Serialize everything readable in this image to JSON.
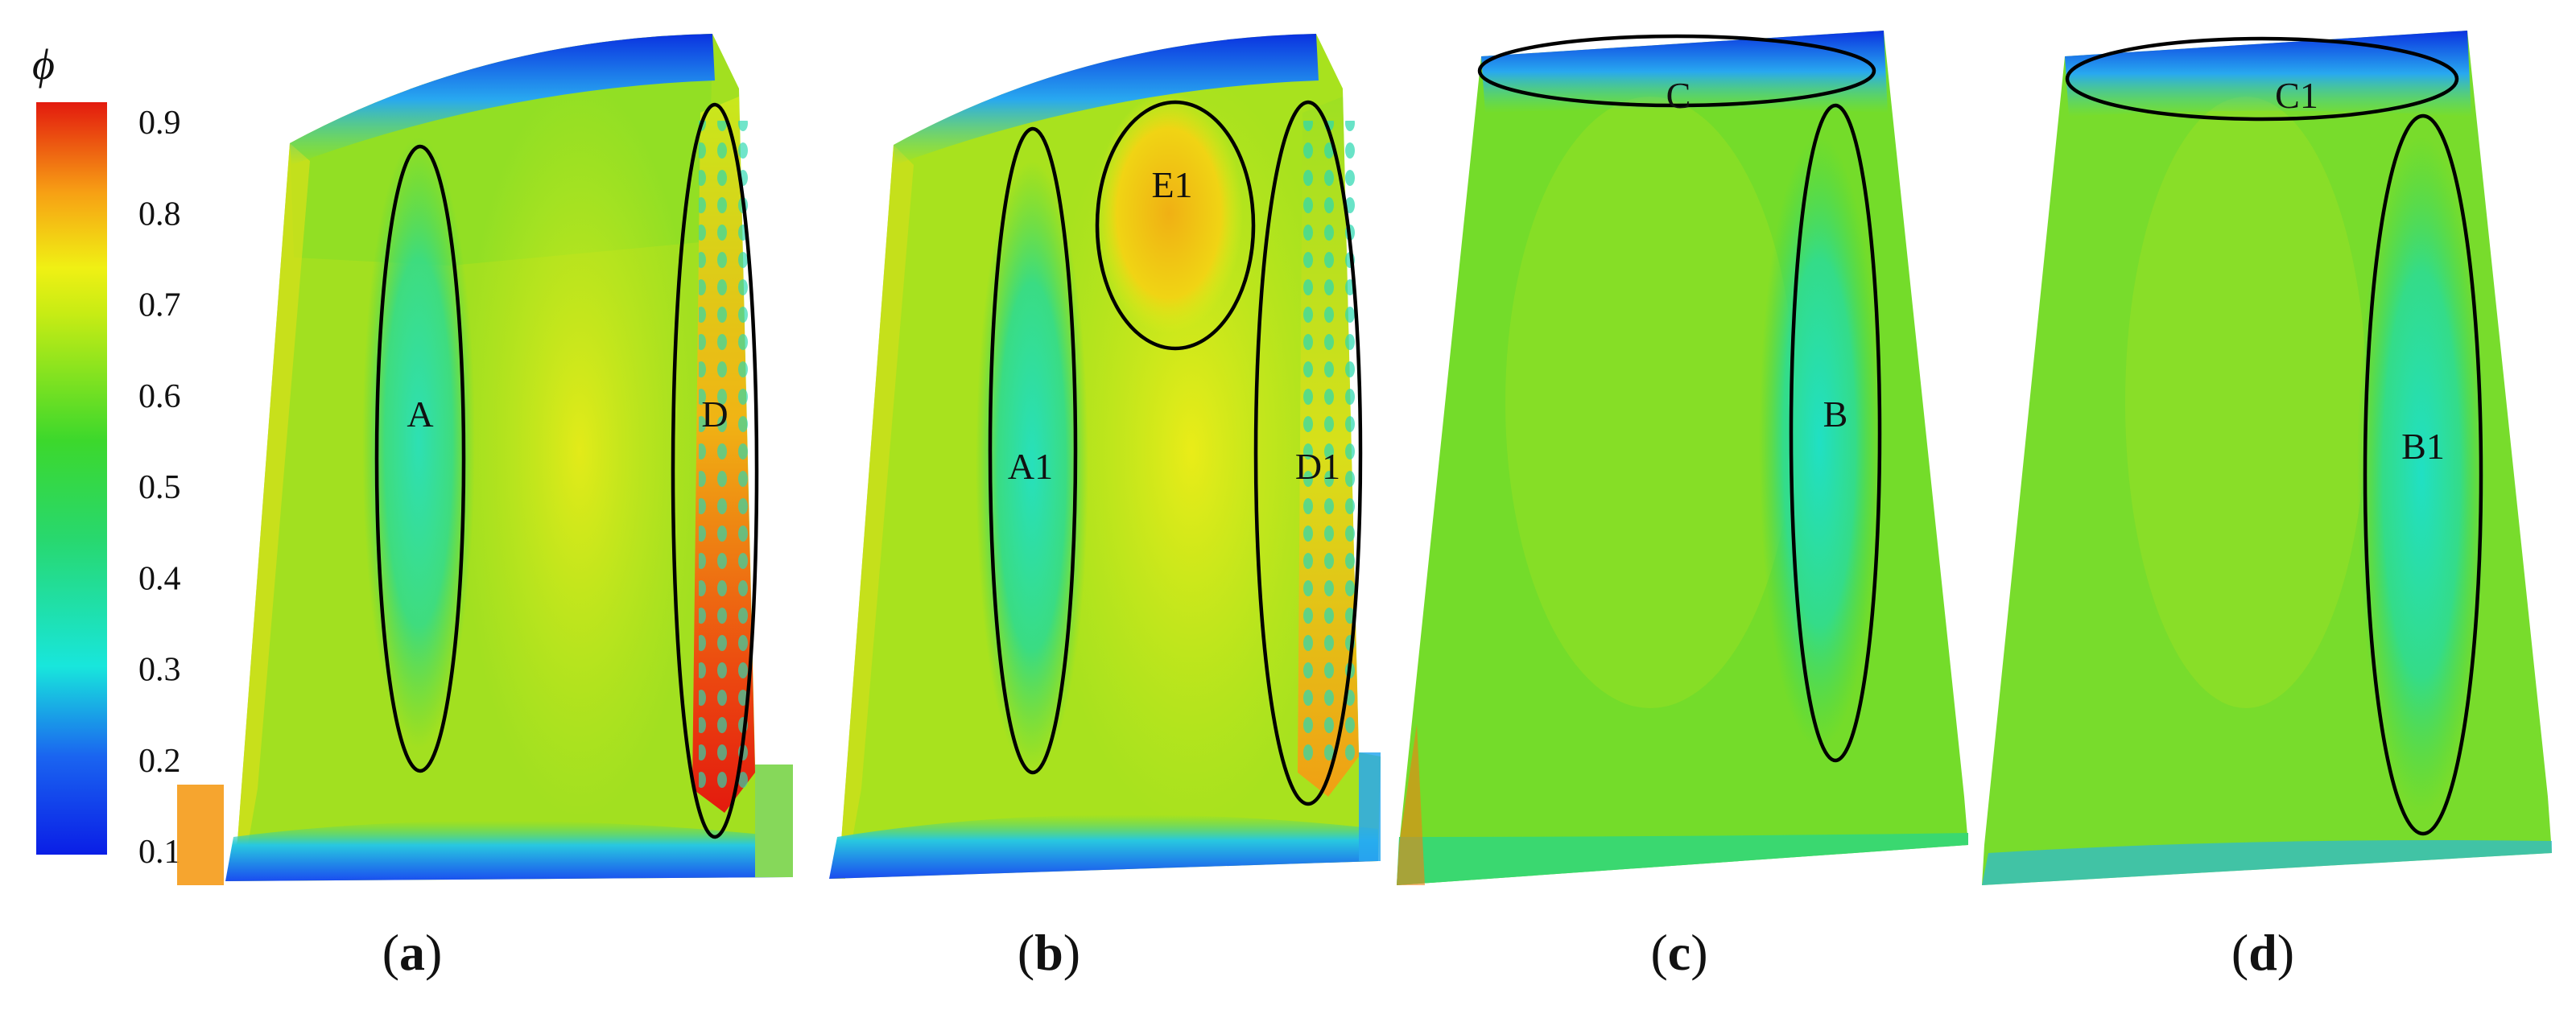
{
  "colorbar": {
    "symbol": "ϕ",
    "ticks": [
      "0.9",
      "0.8",
      "0.7",
      "0.6",
      "0.5",
      "0.4",
      "0.3",
      "0.2",
      "0.1"
    ]
  },
  "colors": {
    "red": "#e31a0e",
    "orange": "#f79a14",
    "yellow": "#eded14",
    "yellow_green": "#b2e21e",
    "green": "#3cd82c",
    "cyan": "#18e6dc",
    "light_blue": "#28b4f0",
    "blue": "#0a1ee6"
  },
  "panels": [
    {
      "id": "a",
      "caption": "a",
      "regions": [
        "A",
        "D"
      ]
    },
    {
      "id": "b",
      "caption": "b",
      "regions": [
        "A1",
        "D1",
        "E1"
      ]
    },
    {
      "id": "c",
      "caption": "c",
      "regions": [
        "C",
        "B"
      ]
    },
    {
      "id": "d",
      "caption": "d",
      "regions": [
        "C1",
        "B1"
      ]
    }
  ]
}
